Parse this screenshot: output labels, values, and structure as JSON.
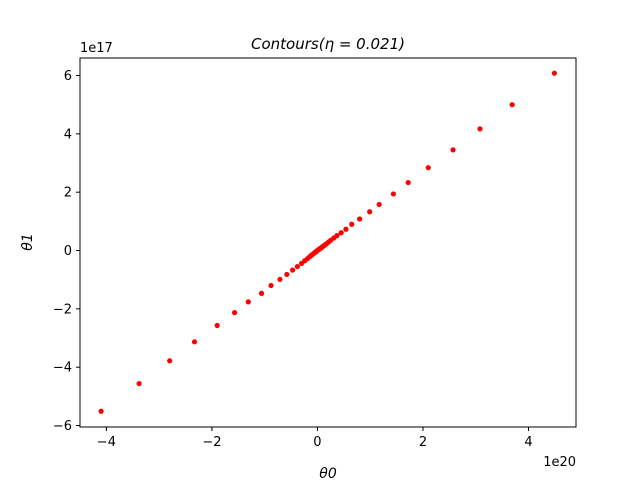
{
  "chart_data": {
    "type": "scatter",
    "title": "Contours(η = 0.021)",
    "xlabel": "θ0",
    "ylabel": "θ1",
    "x_offset_label": "1e20",
    "y_offset_label": "1e17",
    "x_scale": 1e+20,
    "y_scale": 1e+17,
    "xlim": [
      -4.5,
      4.9
    ],
    "ylim": [
      -6.05,
      6.6
    ],
    "x_ticks": [
      -4,
      -2,
      0,
      2,
      4
    ],
    "x_tick_labels": [
      "−4",
      "−2",
      "0",
      "2",
      "4"
    ],
    "y_ticks": [
      -6,
      -4,
      -2,
      0,
      2,
      4,
      6
    ],
    "y_tick_labels": [
      "−6",
      "−4",
      "−2",
      "0",
      "2",
      "4",
      "6"
    ],
    "grid": false,
    "series": [
      {
        "color": "#ff0000",
        "marker": "circle",
        "points": [
          [
            4.49,
            6.08
          ],
          [
            3.69,
            5.0
          ],
          [
            3.08,
            4.17
          ],
          [
            2.57,
            3.45
          ],
          [
            2.1,
            2.84
          ],
          [
            1.72,
            2.33
          ],
          [
            1.44,
            1.94
          ],
          [
            1.17,
            1.58
          ],
          [
            0.99,
            1.33
          ],
          [
            0.8,
            1.08
          ],
          [
            0.65,
            0.9
          ],
          [
            0.54,
            0.73
          ],
          [
            0.45,
            0.61
          ],
          [
            0.37,
            0.51
          ],
          [
            0.31,
            0.43
          ],
          [
            0.25,
            0.35
          ],
          [
            0.21,
            0.29
          ],
          [
            0.17,
            0.23
          ],
          [
            0.14,
            0.19
          ],
          [
            0.11,
            0.15
          ],
          [
            0.09,
            0.12
          ],
          [
            0.07,
            0.09
          ],
          [
            0.05,
            0.07
          ],
          [
            0.03,
            0.04
          ],
          [
            0.01,
            0.02
          ],
          [
            0.0,
            0.0
          ],
          [
            -4.1,
            -5.51
          ],
          [
            -3.38,
            -4.56
          ],
          [
            -2.8,
            -3.78
          ],
          [
            -2.33,
            -3.13
          ],
          [
            -1.9,
            -2.57
          ],
          [
            -1.57,
            -2.13
          ],
          [
            -1.31,
            -1.76
          ],
          [
            -1.06,
            -1.47
          ],
          [
            -0.88,
            -1.2
          ],
          [
            -0.71,
            -0.99
          ],
          [
            -0.58,
            -0.82
          ],
          [
            -0.47,
            -0.67
          ],
          [
            -0.38,
            -0.55
          ],
          [
            -0.3,
            -0.44
          ],
          [
            -0.24,
            -0.35
          ],
          [
            -0.19,
            -0.28
          ],
          [
            -0.15,
            -0.22
          ],
          [
            -0.12,
            -0.17
          ],
          [
            -0.09,
            -0.13
          ],
          [
            -0.07,
            -0.1
          ],
          [
            -0.05,
            -0.07
          ],
          [
            -0.03,
            -0.05
          ],
          [
            -0.02,
            -0.03
          ]
        ]
      }
    ]
  }
}
